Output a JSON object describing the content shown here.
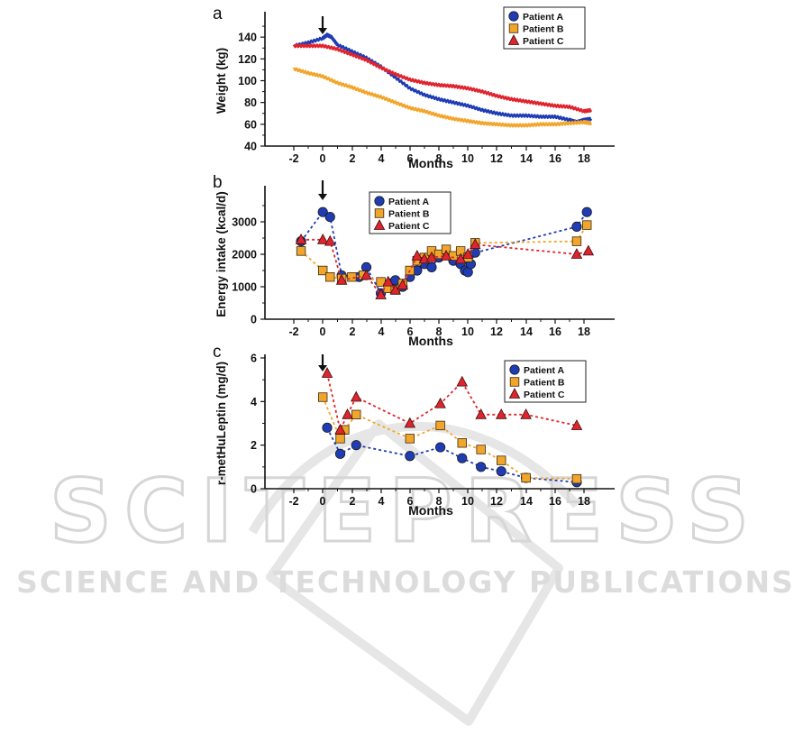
{
  "figure": {
    "panels": [
      {
        "letter": "a",
        "xlabel": "Months",
        "ylabel": "Weight (kg)",
        "xticks": [
          "-2",
          "0",
          "2",
          "4",
          "6",
          "8",
          "10",
          "12",
          "14",
          "16",
          "18"
        ],
        "yticks": [
          "40",
          "60",
          "80",
          "100",
          "120",
          "140"
        ]
      },
      {
        "letter": "b",
        "xlabel": "Months",
        "ylabel": "Energy intake (kcal/d)",
        "xticks": [
          "-2",
          "0",
          "2",
          "4",
          "6",
          "8",
          "10",
          "12",
          "14",
          "16",
          "18"
        ],
        "yticks": [
          "0",
          "1000",
          "2000",
          "3000"
        ]
      },
      {
        "letter": "c",
        "xlabel": "Months",
        "ylabel": "r-metHuLeptin (mg/d)",
        "xticks": [
          "-2",
          "0",
          "2",
          "4",
          "6",
          "8",
          "10",
          "12",
          "14",
          "16",
          "18"
        ],
        "yticks": [
          "0",
          "2",
          "4",
          "6"
        ]
      }
    ]
  },
  "legend": {
    "entries": [
      "Patient A",
      "Patient B",
      "Patient C"
    ]
  },
  "colors": {
    "patient_a": "#1f3cb4",
    "patient_b": "#f2a52b",
    "patient_c": "#e0242e",
    "axis": "#111111",
    "watermark": "#d9d9d9"
  },
  "watermark": {
    "title": "SCITEPRESS",
    "subtitle": "SCIENCE AND TECHNOLOGY PUBLICATIONS"
  },
  "chart_data": [
    {
      "type": "line",
      "panel": "a",
      "xlabel": "Months",
      "ylabel": "Weight (kg)",
      "xlim": [
        -3,
        19
      ],
      "ylim": [
        40,
        160
      ],
      "grid": false,
      "legend_position": "top-right",
      "annotation": "arrow at month 0",
      "series": [
        {
          "name": "Patient A",
          "x": [
            -2,
            -1,
            0,
            0.3,
            0.6,
            1,
            2,
            3,
            4,
            5,
            6,
            7,
            8,
            9,
            10,
            11,
            12,
            13,
            14,
            15,
            16,
            17,
            17.5,
            18,
            18.5
          ],
          "y": [
            132,
            135,
            139,
            142,
            140,
            133,
            127,
            121,
            113,
            103,
            93,
            87,
            83,
            80,
            77,
            73,
            70,
            68,
            68,
            67,
            67,
            64,
            62,
            64,
            65
          ]
        },
        {
          "name": "Patient B",
          "x": [
            -2,
            -1,
            0,
            1,
            2,
            3,
            4,
            5,
            6,
            7,
            8,
            9,
            10,
            11,
            12,
            13,
            14,
            15,
            16,
            17,
            18,
            18.5
          ],
          "y": [
            111,
            107,
            104,
            98,
            94,
            89,
            85,
            80,
            75,
            72,
            68,
            65,
            63,
            61,
            60,
            59,
            59,
            60,
            60,
            61,
            62,
            61
          ]
        },
        {
          "name": "Patient C",
          "x": [
            -2,
            -1,
            0,
            1,
            2,
            3,
            4,
            5,
            6,
            7,
            8,
            9,
            10,
            11,
            12,
            13,
            14,
            15,
            16,
            17,
            18,
            18.5
          ],
          "y": [
            132,
            132,
            132,
            129,
            124,
            119,
            112,
            106,
            101,
            98,
            96,
            95,
            93,
            90,
            86,
            83,
            81,
            79,
            77,
            76,
            72,
            73
          ]
        }
      ]
    },
    {
      "type": "scatter",
      "panel": "b",
      "xlabel": "Months",
      "ylabel": "Energy intake (kcal/d)",
      "xlim": [
        -3,
        19
      ],
      "ylim": [
        0,
        4000
      ],
      "grid": false,
      "legend_position": "top-left",
      "annotation": "arrow at month 0",
      "series": [
        {
          "name": "Patient A",
          "x": [
            -1.5,
            0,
            0.5,
            1.3,
            2.5,
            3,
            4,
            4.6,
            5,
            5.5,
            6,
            6.5,
            7,
            7.5,
            8,
            8.5,
            9,
            9.5,
            9.8,
            10,
            10.2,
            10.5,
            17.5,
            18.2
          ],
          "y": [
            2400,
            3300,
            3150,
            1350,
            1300,
            1600,
            800,
            1100,
            1200,
            1000,
            1300,
            1500,
            1700,
            1600,
            1900,
            2000,
            1800,
            1700,
            1500,
            1450,
            1700,
            2050,
            2850,
            3300
          ]
        },
        {
          "name": "Patient B",
          "x": [
            -1.5,
            0,
            0.5,
            1.3,
            2,
            2.8,
            4,
            4.5,
            5,
            5.5,
            6,
            6.5,
            7,
            7.5,
            8,
            8.5,
            9,
            9.5,
            10,
            10.5,
            17.5,
            18.2
          ],
          "y": [
            2100,
            1500,
            1300,
            1250,
            1300,
            1350,
            1150,
            950,
            900,
            1100,
            1500,
            1800,
            1900,
            2100,
            2000,
            2150,
            1950,
            2100,
            1900,
            2350,
            2400,
            2900
          ]
        },
        {
          "name": "Patient C",
          "x": [
            -1.5,
            0,
            0.5,
            1.3,
            3,
            4,
            4.5,
            5,
            5.5,
            6.5,
            7,
            7.5,
            8.5,
            9.5,
            10,
            10.5,
            17.5,
            18.3
          ],
          "y": [
            2450,
            2450,
            2400,
            1200,
            1350,
            750,
            1150,
            900,
            1050,
            1950,
            1850,
            1900,
            1950,
            1850,
            2000,
            2300,
            2000,
            2100
          ]
        }
      ]
    },
    {
      "type": "line",
      "panel": "c",
      "xlabel": "Months",
      "ylabel": "r-metHuLeptin (mg/d)",
      "xlim": [
        -3,
        19
      ],
      "ylim": [
        0,
        6
      ],
      "grid": false,
      "legend_position": "top-right",
      "annotation": "arrow at month 0",
      "series": [
        {
          "name": "Patient A",
          "x": [
            0.3,
            1.2,
            2.3,
            6,
            8.1,
            9.6,
            10.9,
            12.3,
            14,
            17.5
          ],
          "y": [
            2.8,
            1.6,
            2.0,
            1.5,
            1.9,
            1.4,
            1.0,
            0.8,
            0.5,
            0.3
          ]
        },
        {
          "name": "Patient B",
          "x": [
            0,
            1.2,
            1.5,
            2.3,
            6,
            8.1,
            9.6,
            10.9,
            12.3,
            14,
            17.5
          ],
          "y": [
            4.2,
            2.3,
            2.7,
            3.4,
            2.3,
            2.9,
            2.1,
            1.8,
            1.3,
            0.5,
            0.45
          ]
        },
        {
          "name": "Patient C",
          "x": [
            0.3,
            1.2,
            1.7,
            2.3,
            6,
            8.1,
            9.6,
            10.9,
            12.3,
            14,
            17.5
          ],
          "y": [
            5.3,
            2.7,
            3.4,
            4.2,
            3.0,
            3.9,
            4.9,
            3.4,
            3.4,
            3.4,
            2.9
          ]
        }
      ]
    }
  ]
}
